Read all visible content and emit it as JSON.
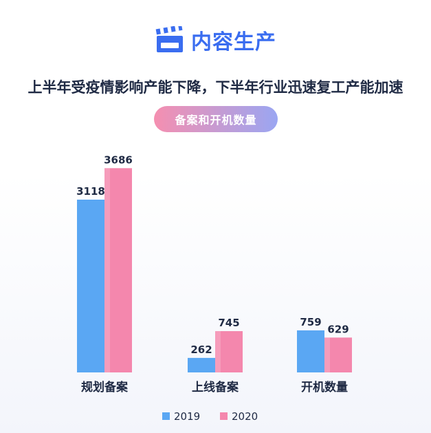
{
  "header": {
    "title": "内容生产",
    "icon": "clapperboard-icon"
  },
  "subtitle": "上半年受疫情影响产能下降，下半年行业迅速复工产能加速",
  "pill_label": "备案和开机数量",
  "colors": {
    "accent": "#3a6df0",
    "series_2019": "#5aa7f3",
    "series_2020": "#f487ad"
  },
  "chart_data": {
    "type": "bar",
    "categories": [
      "规划备案",
      "上线备案",
      "开机数量"
    ],
    "series": [
      {
        "name": "2019",
        "values": [
          3118,
          262,
          759
        ]
      },
      {
        "name": "2020",
        "values": [
          3686,
          745,
          629
        ]
      }
    ],
    "ylim": [
      0,
      4000
    ],
    "grid": false,
    "legend": "bottom"
  }
}
